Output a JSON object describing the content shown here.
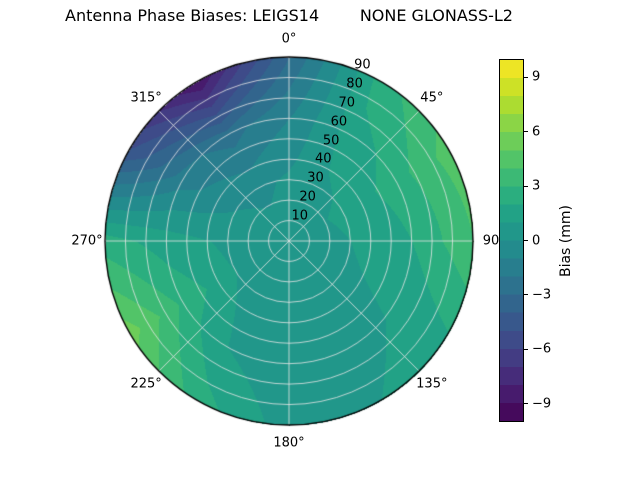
{
  "title": "Antenna Phase Biases: LEIGS14        NONE GLONASS-L2",
  "colorbar": {
    "label": "Bias (mm)",
    "vmin": -10,
    "vmax": 10,
    "band_step_mm": 1,
    "ticks": [
      {
        "value": 9,
        "label": "9"
      },
      {
        "value": 6,
        "label": "6"
      },
      {
        "value": 3,
        "label": "3"
      },
      {
        "value": 0,
        "label": "0"
      },
      {
        "value": -3,
        "label": "−3"
      },
      {
        "value": -6,
        "label": "−6"
      },
      {
        "value": -9,
        "label": "−9"
      }
    ]
  },
  "polar": {
    "angular_labels": [
      {
        "angle": 0,
        "text": "0°"
      },
      {
        "angle": 45,
        "text": "45°"
      },
      {
        "angle": 90,
        "text": "90"
      },
      {
        "angle": 135,
        "text": "135°"
      },
      {
        "angle": 180,
        "text": "180°"
      },
      {
        "angle": 225,
        "text": "225°"
      },
      {
        "angle": 270,
        "text": "270°"
      },
      {
        "angle": 315,
        "text": "315°"
      }
    ],
    "radial_ticks": [
      10,
      20,
      30,
      40,
      50,
      60,
      70,
      80,
      90
    ],
    "radial_label_angle_deg": 22.5,
    "rmax": 90
  },
  "chart_data": {
    "type": "heatmap",
    "projection": "polar",
    "title": "Antenna Phase Biases: LEIGS14        NONE GLONASS-L2",
    "colormap": "viridis",
    "colorbar_label": "Bias (mm)",
    "value_range": [
      -10,
      10
    ],
    "azimuth_deg": [
      0,
      30,
      60,
      90,
      120,
      150,
      180,
      210,
      240,
      270,
      300,
      330
    ],
    "zenith_deg": [
      0,
      30,
      60,
      90
    ],
    "bias_mm": [
      [
        0.5,
        0.2,
        -1.0,
        -3.0
      ],
      [
        0.5,
        0.8,
        1.5,
        2.5
      ],
      [
        0.5,
        1.2,
        2.5,
        4.5
      ],
      [
        0.5,
        1.0,
        2.0,
        4.0
      ],
      [
        0.5,
        0.8,
        1.2,
        2.0
      ],
      [
        0.5,
        0.5,
        0.5,
        1.0
      ],
      [
        0.5,
        0.3,
        0.2,
        0.5
      ],
      [
        0.5,
        0.5,
        1.0,
        2.5
      ],
      [
        0.5,
        1.0,
        2.8,
        5.5
      ],
      [
        0.5,
        0.8,
        1.5,
        2.5
      ],
      [
        0.5,
        0.0,
        -1.5,
        -5.0
      ],
      [
        0.5,
        -0.3,
        -2.5,
        -9.0
      ]
    ]
  }
}
